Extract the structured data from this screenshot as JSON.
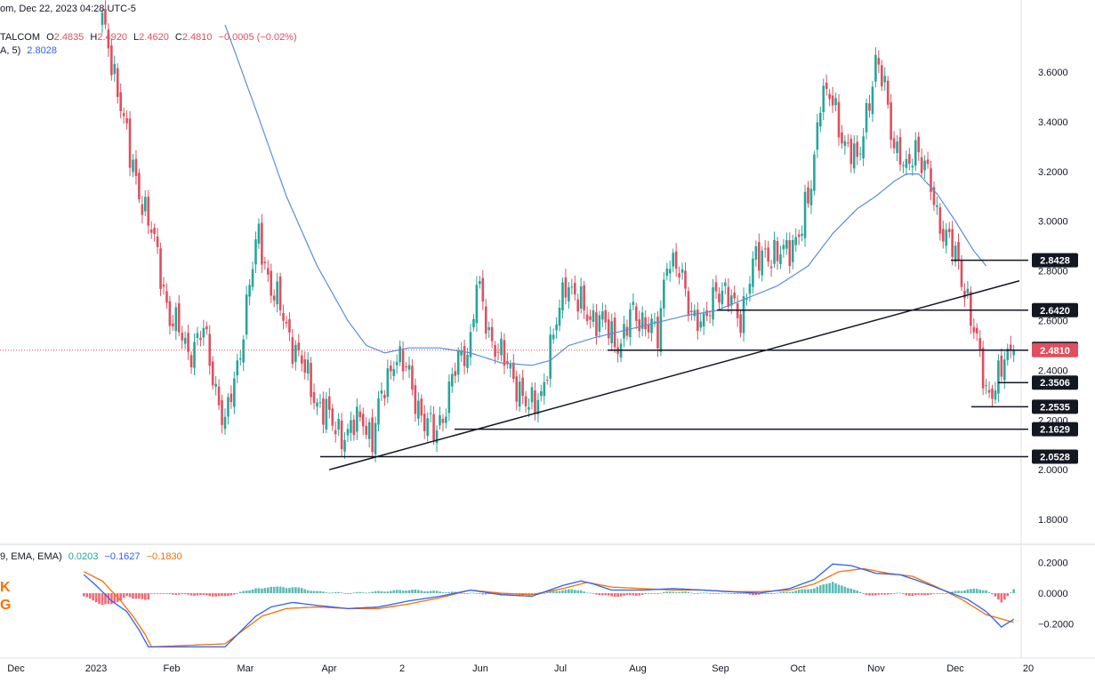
{
  "header": {
    "line1": "om, Dec 22, 2023 04:28 UTC-5",
    "symbol": "TALCOM",
    "o_label": "O",
    "o_val": "2.4835",
    "h_label": "H",
    "h_val": "2.4920",
    "l_label": "L",
    "l_val": "2.4620",
    "c_label": "C",
    "c_val": "2.4810",
    "change": "−0.0005 (−0.02%)",
    "ma_label": "A, 5)",
    "ma_val": "2.8028"
  },
  "macd_header": {
    "label": "9, EMA, EMA)",
    "v1": "0.0203",
    "v2": "−0.1627",
    "v3": "−0.1830"
  },
  "logo": {
    "text1": "K",
    "text2": "G"
  },
  "colors": {
    "up": "#26a69a",
    "down": "#e04f5f",
    "ma": "#5b8fd6",
    "macd": "#2962ff",
    "signal": "#ff6d00",
    "hist_pos": "#26a69a",
    "hist_neg": "#f23645"
  },
  "chart_data": [
    {
      "type": "candlestick",
      "y_ticks": [
        "3.6000",
        "3.4000",
        "3.2000",
        "3.0000",
        "2.8000",
        "2.6000",
        "2.4000",
        "2.2000",
        "2.0000",
        "1.8000"
      ],
      "ylim": [
        1.72,
        3.82
      ],
      "x_ticks": [
        "Dec",
        "2023",
        "Feb",
        "Mar",
        "Apr",
        "2",
        "Jun",
        "Jul",
        "Aug",
        "Sep",
        "Oct",
        "Nov",
        "Dec",
        "20"
      ],
      "price_levels": [
        {
          "label": "2.8428",
          "value": 2.8428
        },
        {
          "label": "2.6420",
          "value": 2.642
        },
        {
          "label": "2.4866",
          "value": 2.4866
        },
        {
          "label": "2.4810",
          "value": 2.481
        },
        {
          "label": "2.3506",
          "value": 2.3506
        },
        {
          "label": "2.2535",
          "value": 2.2535
        },
        {
          "label": "2.1629",
          "value": 2.1629
        },
        {
          "label": "2.0528",
          "value": 2.0528
        }
      ],
      "trendline": {
        "from": 2.0,
        "to": 2.76
      },
      "last_close": 2.481,
      "anchors": [
        [
          0,
          3.79
        ],
        [
          5,
          3.55
        ],
        [
          9,
          3.25
        ],
        [
          14,
          3.05
        ],
        [
          18,
          2.85
        ],
        [
          22,
          2.62
        ],
        [
          28,
          2.48
        ],
        [
          33,
          2.55
        ],
        [
          38,
          2.28
        ],
        [
          40,
          2.17
        ],
        [
          44,
          2.42
        ],
        [
          48,
          2.74
        ],
        [
          51,
          2.95
        ],
        [
          55,
          2.73
        ],
        [
          60,
          2.58
        ],
        [
          65,
          2.42
        ],
        [
          70,
          2.28
        ],
        [
          75,
          2.18
        ],
        [
          80,
          2.14
        ],
        [
          85,
          2.22
        ],
        [
          88,
          2.12
        ],
        [
          92,
          2.34
        ],
        [
          95,
          2.46
        ],
        [
          100,
          2.38
        ],
        [
          105,
          2.18
        ],
        [
          108,
          2.15
        ],
        [
          112,
          2.26
        ],
        [
          116,
          2.44
        ],
        [
          120,
          2.52
        ],
        [
          122,
          2.74
        ],
        [
          126,
          2.56
        ],
        [
          130,
          2.45
        ],
        [
          135,
          2.36
        ],
        [
          139,
          2.23
        ],
        [
          143,
          2.32
        ],
        [
          147,
          2.52
        ],
        [
          151,
          2.78
        ],
        [
          155,
          2.66
        ],
        [
          160,
          2.62
        ],
        [
          165,
          2.56
        ],
        [
          169,
          2.51
        ],
        [
          173,
          2.63
        ],
        [
          177,
          2.6
        ],
        [
          181,
          2.52
        ],
        [
          184,
          2.87
        ],
        [
          188,
          2.78
        ],
        [
          192,
          2.65
        ],
        [
          196,
          2.56
        ],
        [
          200,
          2.75
        ],
        [
          204,
          2.68
        ],
        [
          208,
          2.62
        ],
        [
          212,
          2.81
        ],
        [
          216,
          2.89
        ],
        [
          220,
          2.84
        ],
        [
          224,
          2.91
        ],
        [
          228,
          2.96
        ],
        [
          231,
          3.15
        ],
        [
          234,
          3.52
        ],
        [
          238,
          3.47
        ],
        [
          242,
          3.32
        ],
        [
          246,
          3.22
        ],
        [
          249,
          3.45
        ],
        [
          252,
          3.62
        ],
        [
          255,
          3.54
        ],
        [
          258,
          3.32
        ],
        [
          262,
          3.18
        ],
        [
          265,
          3.32
        ],
        [
          268,
          3.22
        ],
        [
          272,
          3.02
        ],
        [
          276,
          2.93
        ],
        [
          279,
          2.8
        ],
        [
          282,
          2.7
        ],
        [
          285,
          2.5
        ],
        [
          288,
          2.3
        ],
        [
          291,
          2.36
        ],
        [
          294,
          2.42
        ],
        [
          297,
          2.48
        ]
      ],
      "ma_anchors": [
        [
          40,
          3.79
        ],
        [
          50,
          3.45
        ],
        [
          60,
          3.1
        ],
        [
          70,
          2.82
        ],
        [
          80,
          2.6
        ],
        [
          86,
          2.5
        ],
        [
          92,
          2.47
        ],
        [
          100,
          2.49
        ],
        [
          110,
          2.49
        ],
        [
          120,
          2.47
        ],
        [
          130,
          2.43
        ],
        [
          140,
          2.42
        ],
        [
          146,
          2.44
        ],
        [
          152,
          2.5
        ],
        [
          160,
          2.53
        ],
        [
          170,
          2.56
        ],
        [
          180,
          2.59
        ],
        [
          190,
          2.62
        ],
        [
          200,
          2.64
        ],
        [
          210,
          2.69
        ],
        [
          220,
          2.74
        ],
        [
          230,
          2.82
        ],
        [
          238,
          2.95
        ],
        [
          246,
          3.05
        ],
        [
          252,
          3.1
        ],
        [
          258,
          3.16
        ],
        [
          262,
          3.19
        ],
        [
          266,
          3.19
        ],
        [
          272,
          3.11
        ],
        [
          278,
          3.0
        ],
        [
          284,
          2.88
        ],
        [
          288,
          2.82
        ]
      ]
    },
    {
      "type": "macd",
      "y_ticks": [
        "0.2000",
        "0.0000",
        "−0.2000"
      ],
      "ylim": [
        -0.28,
        0.24
      ],
      "macd_anchors": [
        [
          -6,
          0.12
        ],
        [
          -2,
          0.05
        ],
        [
          3,
          -0.05
        ],
        [
          8,
          -0.12
        ],
        [
          12,
          -0.24
        ],
        [
          15,
          -0.35
        ],
        [
          40,
          -0.35
        ],
        [
          45,
          -0.25
        ],
        [
          50,
          -0.15
        ],
        [
          55,
          -0.09
        ],
        [
          62,
          -0.06
        ],
        [
          70,
          -0.08
        ],
        [
          80,
          -0.1
        ],
        [
          90,
          -0.09
        ],
        [
          100,
          -0.05
        ],
        [
          110,
          -0.02
        ],
        [
          120,
          0.02
        ],
        [
          130,
          -0.01
        ],
        [
          140,
          -0.02
        ],
        [
          150,
          0.05
        ],
        [
          156,
          0.08
        ],
        [
          160,
          0.06
        ],
        [
          166,
          0.02
        ],
        [
          176,
          0.02
        ],
        [
          186,
          0.03
        ],
        [
          196,
          0.02
        ],
        [
          204,
          0.01
        ],
        [
          214,
          0.0
        ],
        [
          224,
          0.03
        ],
        [
          232,
          0.09
        ],
        [
          238,
          0.19
        ],
        [
          244,
          0.18
        ],
        [
          252,
          0.13
        ],
        [
          260,
          0.12
        ],
        [
          266,
          0.08
        ],
        [
          274,
          0.02
        ],
        [
          282,
          -0.04
        ],
        [
          288,
          -0.12
        ],
        [
          293,
          -0.22
        ],
        [
          297,
          -0.17
        ]
      ],
      "signal_anchors": [
        [
          -6,
          0.14
        ],
        [
          0,
          0.08
        ],
        [
          6,
          -0.05
        ],
        [
          10,
          -0.15
        ],
        [
          14,
          -0.27
        ],
        [
          16,
          -0.35
        ],
        [
          40,
          -0.33
        ],
        [
          46,
          -0.24
        ],
        [
          52,
          -0.15
        ],
        [
          60,
          -0.1
        ],
        [
          70,
          -0.09
        ],
        [
          80,
          -0.1
        ],
        [
          90,
          -0.1
        ],
        [
          100,
          -0.07
        ],
        [
          110,
          -0.03
        ],
        [
          120,
          0.02
        ],
        [
          130,
          0.0
        ],
        [
          140,
          -0.01
        ],
        [
          150,
          0.03
        ],
        [
          158,
          0.07
        ],
        [
          166,
          0.04
        ],
        [
          176,
          0.03
        ],
        [
          186,
          0.02
        ],
        [
          196,
          0.02
        ],
        [
          206,
          0.01
        ],
        [
          214,
          0.01
        ],
        [
          224,
          0.02
        ],
        [
          232,
          0.06
        ],
        [
          240,
          0.14
        ],
        [
          248,
          0.16
        ],
        [
          256,
          0.13
        ],
        [
          264,
          0.11
        ],
        [
          272,
          0.04
        ],
        [
          280,
          -0.04
        ],
        [
          288,
          -0.14
        ],
        [
          297,
          -0.19
        ]
      ]
    }
  ]
}
